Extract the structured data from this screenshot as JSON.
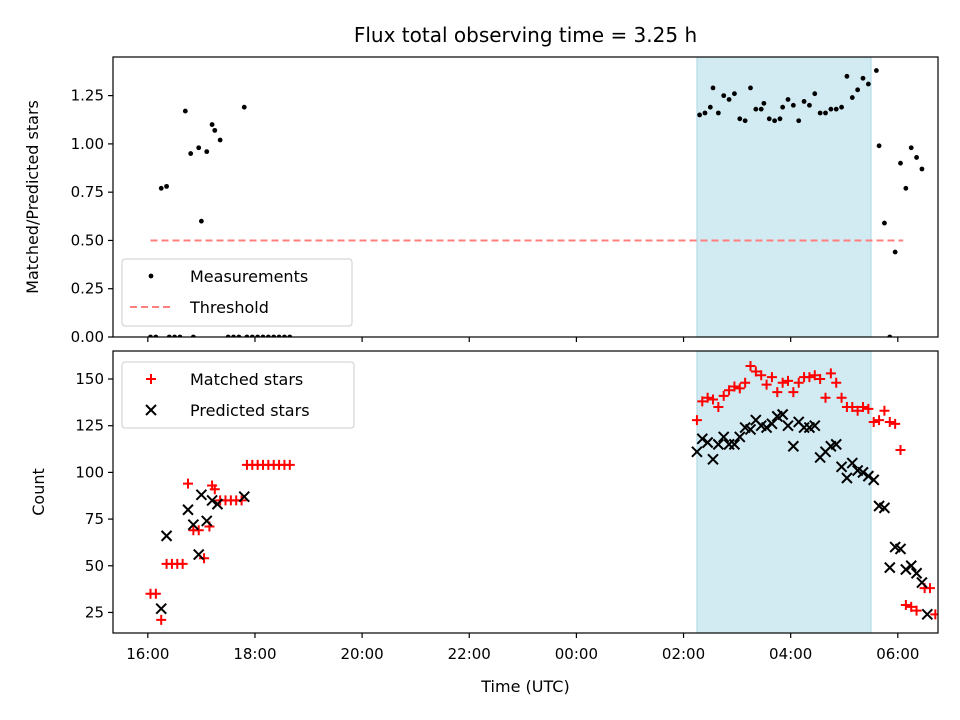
{
  "chart_data": {
    "title": "Flux total observing time = 3.25 h",
    "x_label": "Time (UTC)",
    "x_range_hours": [
      15.35,
      30.75
    ],
    "x_ticks": [
      {
        "hour": 16,
        "label": "16:00"
      },
      {
        "hour": 18,
        "label": "18:00"
      },
      {
        "hour": 20,
        "label": "20:00"
      },
      {
        "hour": 22,
        "label": "22:00"
      },
      {
        "hour": 24,
        "label": "00:00"
      },
      {
        "hour": 26,
        "label": "02:00"
      },
      {
        "hour": 28,
        "label": "04:00"
      },
      {
        "hour": 30,
        "label": "06:00"
      }
    ],
    "highlight_span_hours": [
      26.25,
      29.5
    ],
    "colors": {
      "highlight": "#add8e6",
      "threshold": "#ff7f7f",
      "matched": "#ff0000",
      "predicted": "#000000",
      "measurement": "#000000"
    },
    "panels": [
      {
        "type": "scatter",
        "y_label": "Matched/Predicted stars",
        "y_range": [
          0,
          1.45
        ],
        "y_ticks": [
          {
            "v": 0.0,
            "label": "0.00"
          },
          {
            "v": 0.25,
            "label": "0.25"
          },
          {
            "v": 0.5,
            "label": "0.50"
          },
          {
            "v": 0.75,
            "label": "0.75"
          },
          {
            "v": 1.0,
            "label": "1.00"
          },
          {
            "v": 1.25,
            "label": "1.25"
          }
        ],
        "threshold": {
          "name": "Threshold",
          "value": 0.5,
          "x_range": [
            16.05,
            30.1
          ]
        },
        "legend": {
          "position": "lower left",
          "entries": [
            "Measurements",
            "Threshold"
          ]
        },
        "series": [
          {
            "name": "Measurements",
            "marker": "dot",
            "points": [
              [
                16.05,
                0
              ],
              [
                16.15,
                0
              ],
              [
                16.25,
                0.77
              ],
              [
                16.35,
                0.78
              ],
              [
                16.4,
                0
              ],
              [
                16.5,
                0
              ],
              [
                16.6,
                0
              ],
              [
                16.7,
                1.17
              ],
              [
                16.8,
                0.95
              ],
              [
                16.85,
                0
              ],
              [
                16.95,
                0.98
              ],
              [
                17.0,
                0.6
              ],
              [
                17.1,
                0.96
              ],
              [
                17.2,
                1.1
              ],
              [
                17.25,
                1.07
              ],
              [
                17.35,
                1.02
              ],
              [
                17.5,
                0
              ],
              [
                17.6,
                0
              ],
              [
                17.7,
                0
              ],
              [
                17.8,
                1.19
              ],
              [
                17.85,
                0
              ],
              [
                17.95,
                0
              ],
              [
                18.05,
                0
              ],
              [
                18.15,
                0
              ],
              [
                18.25,
                0
              ],
              [
                18.35,
                0
              ],
              [
                18.45,
                0
              ],
              [
                18.55,
                0
              ],
              [
                18.65,
                0
              ],
              [
                26.3,
                1.15
              ],
              [
                26.4,
                1.16
              ],
              [
                26.5,
                1.19
              ],
              [
                26.55,
                1.29
              ],
              [
                26.65,
                1.16
              ],
              [
                26.75,
                1.25
              ],
              [
                26.85,
                1.23
              ],
              [
                26.95,
                1.26
              ],
              [
                27.05,
                1.13
              ],
              [
                27.15,
                1.12
              ],
              [
                27.25,
                1.29
              ],
              [
                27.35,
                1.18
              ],
              [
                27.45,
                1.18
              ],
              [
                27.5,
                1.21
              ],
              [
                27.6,
                1.13
              ],
              [
                27.7,
                1.12
              ],
              [
                27.8,
                1.13
              ],
              [
                27.85,
                1.19
              ],
              [
                27.95,
                1.23
              ],
              [
                28.05,
                1.2
              ],
              [
                28.15,
                1.12
              ],
              [
                28.25,
                1.22
              ],
              [
                28.35,
                1.2
              ],
              [
                28.45,
                1.26
              ],
              [
                28.55,
                1.16
              ],
              [
                28.65,
                1.16
              ],
              [
                28.75,
                1.18
              ],
              [
                28.85,
                1.18
              ],
              [
                28.95,
                1.19
              ],
              [
                29.05,
                1.35
              ],
              [
                29.15,
                1.24
              ],
              [
                29.25,
                1.28
              ],
              [
                29.35,
                1.34
              ],
              [
                29.45,
                1.31
              ],
              [
                29.6,
                1.38
              ],
              [
                29.65,
                0.99
              ],
              [
                29.75,
                0.59
              ],
              [
                29.85,
                0.0
              ],
              [
                29.95,
                0.44
              ],
              [
                30.05,
                0.9
              ],
              [
                30.15,
                0.77
              ],
              [
                30.25,
                0.98
              ],
              [
                30.35,
                0.93
              ],
              [
                30.45,
                0.87
              ]
            ]
          }
        ]
      },
      {
        "type": "scatter",
        "y_label": "Count",
        "y_range": [
          14,
          165
        ],
        "y_ticks": [
          {
            "v": 25,
            "label": "25"
          },
          {
            "v": 50,
            "label": "50"
          },
          {
            "v": 75,
            "label": "75"
          },
          {
            "v": 100,
            "label": "100"
          },
          {
            "v": 125,
            "label": "125"
          },
          {
            "v": 150,
            "label": "150"
          }
        ],
        "legend": {
          "position": "upper left",
          "entries": [
            "Matched stars",
            "Predicted stars"
          ]
        },
        "series": [
          {
            "name": "Matched stars",
            "marker": "plus",
            "points": [
              [
                16.05,
                35
              ],
              [
                16.15,
                35
              ],
              [
                16.25,
                21
              ],
              [
                16.35,
                51
              ],
              [
                16.45,
                51
              ],
              [
                16.55,
                51
              ],
              [
                16.65,
                51
              ],
              [
                16.75,
                94
              ],
              [
                16.85,
                69
              ],
              [
                16.95,
                69
              ],
              [
                17.05,
                54
              ],
              [
                17.15,
                71
              ],
              [
                17.2,
                93
              ],
              [
                17.25,
                91
              ],
              [
                17.35,
                85
              ],
              [
                17.45,
                85
              ],
              [
                17.55,
                85
              ],
              [
                17.65,
                85
              ],
              [
                17.75,
                85
              ],
              [
                17.85,
                104
              ],
              [
                17.95,
                104
              ],
              [
                18.05,
                104
              ],
              [
                18.15,
                104
              ],
              [
                18.25,
                104
              ],
              [
                18.35,
                104
              ],
              [
                18.45,
                104
              ],
              [
                18.55,
                104
              ],
              [
                18.65,
                104
              ],
              [
                26.25,
                128
              ],
              [
                26.35,
                138
              ],
              [
                26.45,
                140
              ],
              [
                26.55,
                139
              ],
              [
                26.65,
                135
              ],
              [
                26.75,
                141
              ],
              [
                26.85,
                144
              ],
              [
                26.95,
                146
              ],
              [
                27.05,
                145
              ],
              [
                27.15,
                148
              ],
              [
                27.25,
                157
              ],
              [
                27.35,
                154
              ],
              [
                27.45,
                152
              ],
              [
                27.55,
                147
              ],
              [
                27.65,
                151
              ],
              [
                27.75,
                143
              ],
              [
                27.85,
                148
              ],
              [
                27.95,
                149
              ],
              [
                28.05,
                143
              ],
              [
                28.15,
                148
              ],
              [
                28.25,
                151
              ],
              [
                28.35,
                151
              ],
              [
                28.45,
                152
              ],
              [
                28.55,
                150
              ],
              [
                28.65,
                140
              ],
              [
                28.75,
                153
              ],
              [
                28.85,
                148
              ],
              [
                28.95,
                140
              ],
              [
                29.05,
                135
              ],
              [
                29.15,
                135
              ],
              [
                29.25,
                133
              ],
              [
                29.35,
                135
              ],
              [
                29.45,
                134
              ],
              [
                29.55,
                127
              ],
              [
                29.65,
                128
              ],
              [
                29.75,
                133
              ],
              [
                29.85,
                127
              ],
              [
                29.95,
                126
              ],
              [
                30.05,
                112
              ],
              [
                30.15,
                29
              ],
              [
                30.25,
                28
              ],
              [
                30.35,
                26
              ],
              [
                30.5,
                38
              ],
              [
                30.6,
                38
              ],
              [
                30.7,
                24
              ]
            ]
          },
          {
            "name": "Predicted stars",
            "marker": "x",
            "points": [
              [
                16.25,
                27
              ],
              [
                16.35,
                66
              ],
              [
                16.75,
                80
              ],
              [
                16.85,
                72
              ],
              [
                16.95,
                56
              ],
              [
                17.0,
                88
              ],
              [
                17.1,
                74
              ],
              [
                17.2,
                85
              ],
              [
                17.3,
                83
              ],
              [
                17.8,
                87
              ],
              [
                26.25,
                111
              ],
              [
                26.35,
                118
              ],
              [
                26.45,
                116
              ],
              [
                26.55,
                107
              ],
              [
                26.65,
                115
              ],
              [
                26.75,
                119
              ],
              [
                26.85,
                115
              ],
              [
                26.95,
                115
              ],
              [
                27.05,
                119
              ],
              [
                27.15,
                124
              ],
              [
                27.25,
                123
              ],
              [
                27.35,
                128
              ],
              [
                27.45,
                125
              ],
              [
                27.55,
                124
              ],
              [
                27.65,
                126
              ],
              [
                27.75,
                130
              ],
              [
                27.85,
                131
              ],
              [
                27.95,
                125
              ],
              [
                28.05,
                114
              ],
              [
                28.15,
                127
              ],
              [
                28.25,
                124
              ],
              [
                28.35,
                124
              ],
              [
                28.45,
                125
              ],
              [
                28.55,
                108
              ],
              [
                28.65,
                111
              ],
              [
                28.75,
                114
              ],
              [
                28.85,
                115
              ],
              [
                28.95,
                103
              ],
              [
                29.05,
                97
              ],
              [
                29.15,
                105
              ],
              [
                29.25,
                101
              ],
              [
                29.35,
                100
              ],
              [
                29.45,
                98
              ],
              [
                29.55,
                96
              ],
              [
                29.65,
                82
              ],
              [
                29.75,
                81
              ],
              [
                29.85,
                49
              ],
              [
                29.95,
                60
              ],
              [
                30.05,
                59
              ],
              [
                30.15,
                48
              ],
              [
                30.25,
                50
              ],
              [
                30.35,
                46
              ],
              [
                30.45,
                41
              ],
              [
                30.55,
                24
              ]
            ]
          }
        ]
      }
    ]
  }
}
